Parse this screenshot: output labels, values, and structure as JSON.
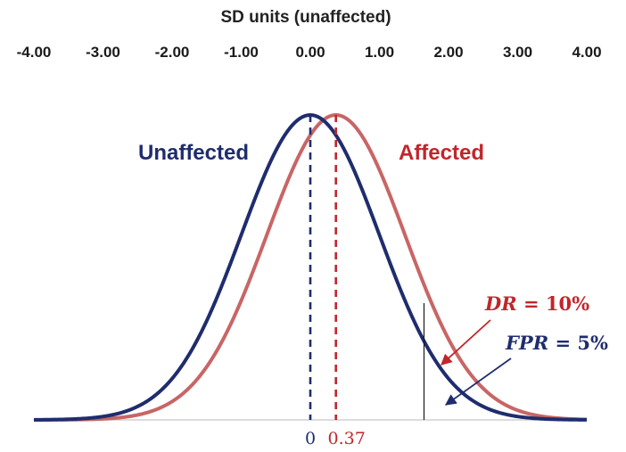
{
  "chart_data": {
    "type": "line",
    "title": "",
    "xlabel": "SD units (unaffected)",
    "x_ticks": [
      "-4.00",
      "-3.00",
      "-2.00",
      "-1.00",
      "0.00",
      "1.00",
      "2.00",
      "3.00",
      "4.00"
    ],
    "xlim": [
      -4.0,
      4.0
    ],
    "series": [
      {
        "name": "Unaffected",
        "mean": 0.0,
        "sd": 1.0,
        "color": "#1f2d6e",
        "mean_label": "0"
      },
      {
        "name": "Affected",
        "mean": 0.37,
        "sd": 1.0,
        "color": "#c96565",
        "mean_line_color": "#c0262b",
        "mean_label": "0.37"
      }
    ],
    "cutoff_sd": 1.645,
    "annotations": [
      {
        "var": "DR",
        "rest": " = 10%",
        "color": "#c0262b"
      },
      {
        "var": "FPR",
        "rest": " = 5%",
        "color": "#1f2d6e"
      }
    ],
    "grid": false,
    "legend": "none"
  }
}
